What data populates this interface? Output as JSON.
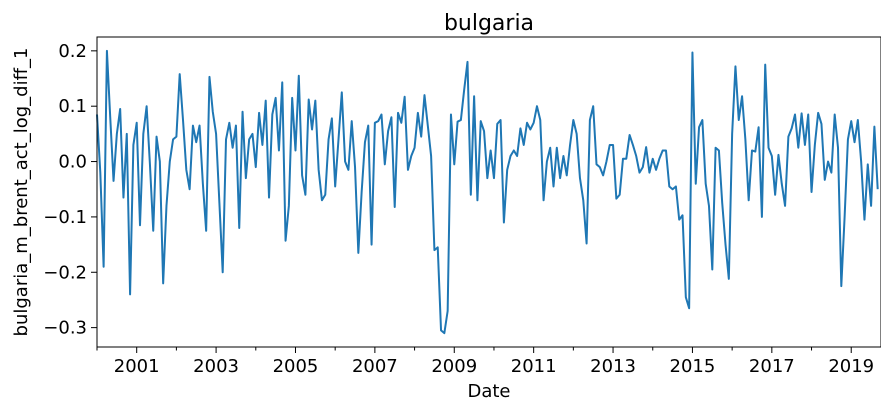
{
  "chart_data": {
    "type": "line",
    "title": "bulgaria",
    "xlabel": "Date",
    "ylabel": "bulgaria_m_brent_act_log_diff_1",
    "xlim": [
      "2000-01",
      "2019-10"
    ],
    "ylim": [
      -0.335,
      0.225
    ],
    "xticks": [
      {
        "date": "2001-01",
        "label": "2001"
      },
      {
        "date": "2003-01",
        "label": "2003"
      },
      {
        "date": "2005-01",
        "label": "2005"
      },
      {
        "date": "2007-01",
        "label": "2007"
      },
      {
        "date": "2009-01",
        "label": "2009"
      },
      {
        "date": "2011-01",
        "label": "2011"
      },
      {
        "date": "2013-01",
        "label": "2013"
      },
      {
        "date": "2015-01",
        "label": "2015"
      },
      {
        "date": "2017-01",
        "label": "2017"
      },
      {
        "date": "2019-01",
        "label": "2019"
      }
    ],
    "yticks": [
      {
        "value": 0.2,
        "label": "0.2"
      },
      {
        "value": 0.1,
        "label": "0.1"
      },
      {
        "value": 0.0,
        "label": "0.0"
      },
      {
        "value": -0.1,
        "label": "−0.1"
      },
      {
        "value": -0.2,
        "label": "−0.2"
      },
      {
        "value": -0.3,
        "label": "−0.3"
      }
    ],
    "grid": false,
    "line_color": "#1f77b4",
    "x_start": "2000-01",
    "series": [
      {
        "values": [
          0.085,
          -0.02,
          -0.19,
          0.2,
          0.08,
          -0.035,
          0.05,
          0.095,
          -0.065,
          0.05,
          -0.24,
          0.03,
          0.07,
          -0.115,
          0.05,
          0.1,
          -0.005,
          -0.125,
          0.045,
          0.0,
          -0.22,
          -0.08,
          0.0,
          0.04,
          0.045,
          0.158,
          0.075,
          -0.015,
          -0.05,
          0.065,
          0.035,
          0.065,
          -0.04,
          -0.125,
          0.153,
          0.09,
          0.05,
          -0.075,
          -0.2,
          0.04,
          0.07,
          0.025,
          0.065,
          -0.12,
          0.09,
          -0.03,
          0.04,
          0.05,
          -0.01,
          0.088,
          0.03,
          0.11,
          -0.065,
          0.085,
          0.115,
          0.02,
          0.143,
          -0.143,
          -0.08,
          0.115,
          0.02,
          0.155,
          -0.025,
          -0.06,
          0.112,
          0.058,
          0.11,
          -0.015,
          -0.07,
          -0.06,
          0.04,
          0.078,
          -0.045,
          0.04,
          0.125,
          0.0,
          -0.015,
          0.073,
          -0.01,
          -0.165,
          -0.055,
          0.035,
          0.065,
          -0.15,
          0.07,
          0.073,
          0.085,
          -0.005,
          0.055,
          0.08,
          -0.082,
          0.088,
          0.07,
          0.117,
          -0.015,
          0.01,
          0.025,
          0.088,
          0.045,
          0.12,
          0.065,
          0.01,
          -0.16,
          -0.155,
          -0.305,
          -0.31,
          -0.27,
          0.085,
          -0.005,
          0.072,
          0.075,
          0.13,
          0.18,
          -0.06,
          0.118,
          -0.07,
          0.073,
          0.055,
          -0.03,
          0.02,
          -0.03,
          0.068,
          0.075,
          -0.11,
          -0.015,
          0.01,
          0.02,
          0.01,
          0.06,
          0.03,
          0.07,
          0.058,
          0.07,
          0.1,
          0.075,
          -0.07,
          0.0,
          0.025,
          -0.045,
          0.025,
          -0.03,
          0.01,
          -0.025,
          0.03,
          0.075,
          0.05,
          -0.03,
          -0.07,
          -0.148,
          0.075,
          0.1,
          -0.005,
          -0.01,
          -0.025,
          0.0,
          0.03,
          0.03,
          -0.067,
          -0.06,
          0.005,
          0.005,
          0.048,
          0.03,
          0.01,
          -0.02,
          -0.01,
          0.026,
          -0.02,
          0.005,
          -0.015,
          0.005,
          0.02,
          0.02,
          -0.045,
          -0.05,
          -0.045,
          -0.105,
          -0.097,
          -0.245,
          -0.265,
          0.197,
          -0.04,
          0.062,
          0.075,
          -0.04,
          -0.08,
          -0.195,
          0.025,
          0.02,
          -0.075,
          -0.15,
          -0.212,
          0.05,
          0.172,
          0.075,
          0.118,
          0.04,
          -0.07,
          0.02,
          0.018,
          0.062,
          -0.1,
          0.175,
          0.025,
          0.01,
          -0.06,
          0.012,
          -0.04,
          -0.08,
          0.045,
          0.06,
          0.085,
          0.025,
          0.087,
          0.03,
          0.085,
          -0.055,
          0.03,
          0.088,
          0.068,
          -0.033,
          0.0,
          -0.02,
          0.085,
          0.025,
          -0.225,
          -0.1,
          0.04,
          0.073,
          0.035,
          0.075,
          0.0,
          -0.105,
          -0.005,
          -0.08,
          0.063,
          -0.05
        ]
      }
    ]
  }
}
